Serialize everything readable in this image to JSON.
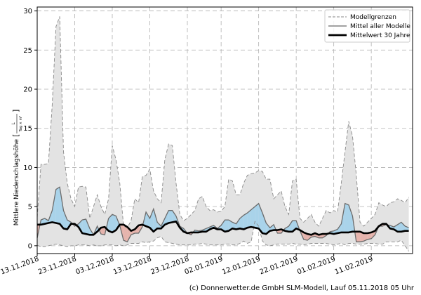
{
  "chart_data": {
    "type": "line",
    "ylabel_main": "Mittlere Niederschlagshöhe",
    "ylabel_unit_num": "L",
    "ylabel_unit_den": "Tag × m²",
    "ylim": [
      -1,
      30.5
    ],
    "xlim": [
      0,
      100
    ],
    "yticks": [
      0,
      5,
      10,
      15,
      20,
      25,
      30
    ],
    "xticks": [
      {
        "x": 0,
        "label": "13.11.2018"
      },
      {
        "x": 10,
        "label": "23.11.2018"
      },
      {
        "x": 20,
        "label": "03.12.2018"
      },
      {
        "x": 30,
        "label": "13.12.2018"
      },
      {
        "x": 40,
        "label": "23.12.2018"
      },
      {
        "x": 49,
        "label": "02.01.2019"
      },
      {
        "x": 59,
        "label": "12.01.2019"
      },
      {
        "x": 69,
        "label": "22.01.2019"
      },
      {
        "x": 79,
        "label": "01.02.2019"
      },
      {
        "x": 89,
        "label": "11.02.2019"
      }
    ],
    "grid": true,
    "legend_position": "top-right",
    "colors": {
      "band_fill": "#e3e3e3",
      "band_edge": "#8a8a8a",
      "mean_line": "#6b6b6b",
      "clim_line": "#000000",
      "above_fill": "#a9d3ea",
      "below_fill": "#e6b4ad"
    },
    "legend": [
      {
        "key": "upper_envelope",
        "label": "Modellgrenzen",
        "style": "dashed"
      },
      {
        "key": "model_mean",
        "label": "Mittel aller Modelle",
        "style": "thin"
      },
      {
        "key": "climatology",
        "label": "Mittelwert 30 Jahre",
        "style": "bold"
      }
    ],
    "x": [
      0,
      1,
      2,
      3,
      4,
      5,
      6,
      7,
      8,
      9,
      10,
      11,
      12,
      13,
      14,
      15,
      16,
      17,
      18,
      19,
      20,
      21,
      22,
      23,
      24,
      25,
      26,
      27,
      28,
      29,
      30,
      31,
      32,
      33,
      34,
      35,
      36,
      37,
      38,
      39,
      40,
      41,
      42,
      43,
      44,
      45,
      46,
      47,
      48,
      49,
      50,
      51,
      52,
      53,
      54,
      55,
      56,
      57,
      58,
      59,
      60,
      61,
      62,
      63,
      64,
      65,
      66,
      67,
      68,
      69,
      70,
      71,
      72,
      73,
      74,
      75,
      76,
      77,
      78,
      79,
      80,
      81,
      82,
      83,
      84,
      85,
      86,
      87,
      88,
      89,
      90,
      91,
      92,
      93,
      94,
      95,
      96,
      97,
      98,
      99
    ],
    "series": [
      {
        "key": "upper_envelope",
        "values": [
          3.6,
          10.4,
          10.4,
          10.5,
          18,
          28,
          29.3,
          12,
          8,
          6,
          5,
          7.5,
          7.6,
          7.5,
          3.5,
          5,
          6.5,
          5,
          4,
          6,
          12.8,
          11,
          8,
          2.5,
          2.3,
          3.2,
          6,
          5.5,
          8.8,
          9,
          9.8,
          7,
          6,
          5.5,
          11,
          13,
          12.8,
          8,
          4,
          3.2,
          3.5,
          4,
          4.5,
          6,
          6.3,
          5,
          4.5,
          4.6,
          4.3,
          4.4,
          5,
          8.5,
          8.3,
          6.5,
          6.5,
          8,
          9,
          9.2,
          9.3,
          9.6,
          9.5,
          8.5,
          8.5,
          6,
          6.5,
          7,
          5,
          4,
          8.3,
          8.5,
          3.5,
          3,
          3.5,
          4,
          3,
          2.5,
          3.5,
          4.5,
          4.2,
          4.5,
          4.3,
          8,
          12,
          15.9,
          14,
          9,
          3,
          2.5,
          3,
          3.5,
          4,
          5.5,
          5.2,
          5,
          5.5,
          5.6,
          6,
          5.8,
          5.5,
          6.2
        ]
      },
      {
        "key": "lower_envelope",
        "values": [
          0.05,
          -0.1,
          -0.1,
          0,
          0.1,
          0.2,
          0.1,
          0,
          -0.1,
          0,
          0,
          0.1,
          0.1,
          0.1,
          0,
          0.1,
          0,
          0,
          0.1,
          0.1,
          0.1,
          0,
          0.1,
          0,
          0.1,
          0.3,
          0.3,
          0.3,
          0.5,
          0.4,
          0.5,
          0.6,
          1,
          1.2,
          0.5,
          0.4,
          0.3,
          0.2,
          0.1,
          0.1,
          0.1,
          0.1,
          0.2,
          0.2,
          0.3,
          0.2,
          0.1,
          0.1,
          0.1,
          0.1,
          0.2,
          0.2,
          0.1,
          0.1,
          0.3,
          0.6,
          0.3,
          0.5,
          3.1,
          2.5,
          0.6,
          0.1,
          0,
          0.1,
          0.2,
          0.2,
          0.2,
          0.2,
          0.3,
          0.2,
          0.2,
          0.1,
          0.2,
          0.3,
          0.3,
          0.3,
          0.3,
          0.3,
          0.2,
          0.1,
          0.2,
          0.3,
          0.1,
          0.3,
          0.3,
          0.2,
          0.2,
          0.2,
          0.3,
          0.3,
          0.3,
          0.2,
          0.2,
          0.5,
          0.5,
          0.5,
          0.5,
          0.7,
          0,
          -0.7
        ]
      },
      {
        "key": "model_mean",
        "values": [
          1.0,
          3.3,
          3.5,
          3.2,
          4.5,
          7.2,
          7.5,
          4.5,
          3.3,
          3,
          2.5,
          2.8,
          3.3,
          3.4,
          2.2,
          1.4,
          2.5,
          1.5,
          1.4,
          3.5,
          4,
          3.8,
          2.6,
          0.7,
          0.5,
          1.4,
          1.6,
          1.6,
          2.4,
          4.3,
          3.5,
          4.7,
          3,
          2.5,
          3.5,
          4.5,
          4.5,
          3.8,
          2.5,
          2.2,
          1.6,
          1.4,
          2,
          1.9,
          2,
          2.2,
          2.4,
          2.6,
          2.2,
          2.6,
          3.3,
          3.3,
          3.0,
          2.8,
          3.5,
          3.9,
          4.2,
          4.6,
          5,
          5.4,
          4.2,
          2.9,
          2.3,
          2.7,
          1.6,
          1.6,
          2.2,
          2.5,
          3.2,
          3.2,
          1.9,
          0.8,
          0.7,
          1.1,
          1.2,
          1,
          1,
          1.3,
          1.8,
          1.9,
          2.1,
          2.8,
          5.4,
          5.2,
          3.8,
          0.5,
          0.5,
          0.6,
          0.8,
          0.9,
          1.4,
          2.5,
          2.5,
          2.7,
          2.6,
          2.4,
          2.7,
          3,
          2.5,
          2.3
        ]
      },
      {
        "key": "climatology",
        "values": [
          2.7,
          2.7,
          2.8,
          2.9,
          3,
          2.9,
          2.8,
          2.2,
          2.1,
          2.8,
          2.8,
          2.4,
          1.6,
          1.5,
          1.4,
          1.4,
          1.8,
          2.3,
          2.4,
          1.9,
          1.7,
          2,
          2.7,
          2.7,
          2.4,
          1.9,
          2.1,
          2.6,
          2.7,
          2.5,
          2.3,
          1.8,
          2.2,
          2.2,
          2.7,
          2.9,
          3,
          3.1,
          2.3,
          1.8,
          1.6,
          1.7,
          1.7,
          1.7,
          1.8,
          1.8,
          2.1,
          2.3,
          2.1,
          2.1,
          1.8,
          1.9,
          2.2,
          2.1,
          2.2,
          2.1,
          2.3,
          2.4,
          2.3,
          2.2,
          1.6,
          1.5,
          1.9,
          2,
          2,
          2.1,
          1.9,
          1.8,
          1.8,
          2.2,
          2,
          1.7,
          1.5,
          1.4,
          1.6,
          1.4,
          1.5,
          1.5,
          1.6,
          1.5,
          1.6,
          1.7,
          1.7,
          1.7,
          1.8,
          1.8,
          1.8,
          1.6,
          1.6,
          1.7,
          1.9,
          2.5,
          2.8,
          2.8,
          2.2,
          2.1,
          1.8,
          1.8,
          1.9,
          1.9
        ]
      }
    ]
  },
  "footer": "(c) Donnerwetter.de GmbH SLM-Modell, Lauf 05.11.2018 05 Uhr"
}
